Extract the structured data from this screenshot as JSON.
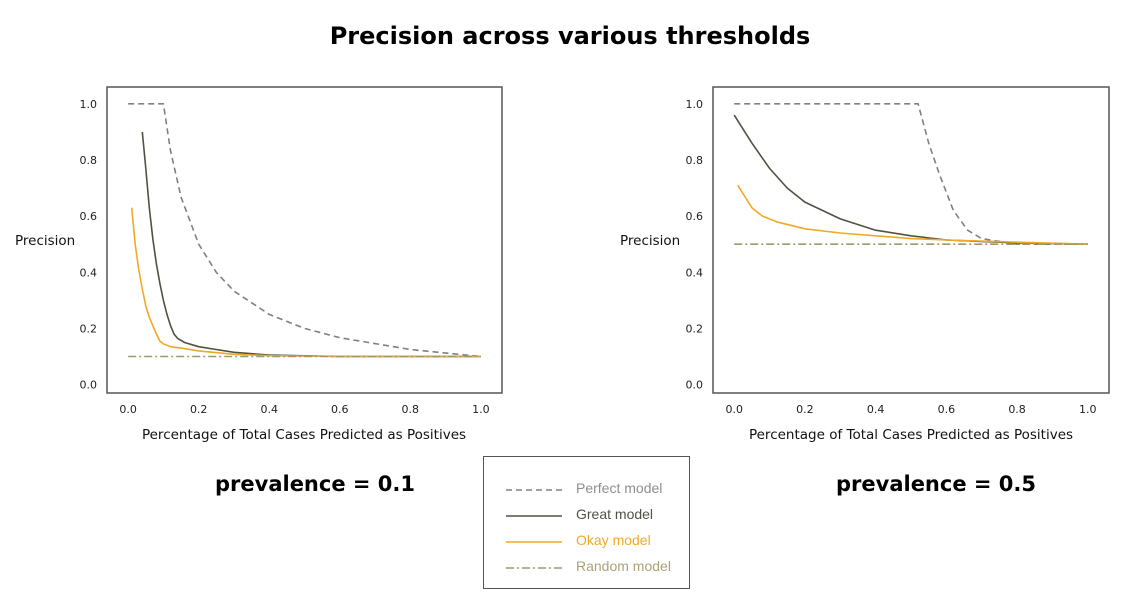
{
  "title": "Precision across various thresholds",
  "legend": {
    "items": [
      {
        "label": "Perfect model",
        "color": "#808080",
        "dash": "6,4"
      },
      {
        "label": "Great model",
        "color": "#4f5243",
        "dash": ""
      },
      {
        "label": "Okay model",
        "color": "#f0a926",
        "dash": ""
      },
      {
        "label": "Random model",
        "color": "#9b9a6e",
        "dash": "8,3,2,3"
      }
    ]
  },
  "chart_data": [
    {
      "type": "line",
      "caption": "prevalence = 0.1",
      "xlabel": "Percentage of Total Cases Predicted as Positives",
      "ylabel": "Precision",
      "xlim": [
        -0.06,
        1.06
      ],
      "ylim": [
        -0.03,
        1.06
      ],
      "xticks": [
        "0.0",
        "0.2",
        "0.4",
        "0.6",
        "0.8",
        "1.0"
      ],
      "yticks": [
        "0.0",
        "0.2",
        "0.4",
        "0.6",
        "0.8",
        "1.0"
      ],
      "grid": false,
      "series": [
        {
          "name": "Perfect model",
          "color": "#808080",
          "dash": "6,4",
          "x": [
            0.0,
            0.1,
            0.12,
            0.15,
            0.2,
            0.25,
            0.3,
            0.4,
            0.5,
            0.6,
            0.8,
            1.0
          ],
          "y": [
            1.0,
            1.0,
            0.833,
            0.667,
            0.5,
            0.4,
            0.333,
            0.25,
            0.2,
            0.167,
            0.125,
            0.1
          ]
        },
        {
          "name": "Great model",
          "color": "#4f5243",
          "dash": "",
          "x": [
            0.04,
            0.05,
            0.06,
            0.07,
            0.08,
            0.09,
            0.1,
            0.11,
            0.12,
            0.13,
            0.14,
            0.16,
            0.2,
            0.25,
            0.3,
            0.4,
            0.6,
            0.8,
            1.0
          ],
          "y": [
            0.9,
            0.77,
            0.63,
            0.52,
            0.43,
            0.36,
            0.3,
            0.25,
            0.21,
            0.18,
            0.165,
            0.15,
            0.135,
            0.125,
            0.115,
            0.105,
            0.1,
            0.1,
            0.1
          ]
        },
        {
          "name": "Okay model",
          "color": "#f0a926",
          "dash": "",
          "x": [
            0.01,
            0.02,
            0.03,
            0.04,
            0.05,
            0.06,
            0.07,
            0.08,
            0.09,
            0.1,
            0.12,
            0.15,
            0.2,
            0.3,
            0.4,
            0.6,
            0.8,
            1.0
          ],
          "y": [
            0.63,
            0.5,
            0.41,
            0.34,
            0.28,
            0.24,
            0.21,
            0.18,
            0.155,
            0.145,
            0.135,
            0.13,
            0.12,
            0.108,
            0.103,
            0.1,
            0.1,
            0.1
          ]
        },
        {
          "name": "Random model",
          "color": "#9b9a6e",
          "dash": "8,3,2,3",
          "x": [
            0.0,
            1.0
          ],
          "y": [
            0.1,
            0.1
          ]
        }
      ]
    },
    {
      "type": "line",
      "caption": "prevalence = 0.5",
      "xlabel": "Percentage of Total Cases Predicted as Positives",
      "ylabel": "Precision",
      "xlim": [
        -0.06,
        1.06
      ],
      "ylim": [
        -0.03,
        1.06
      ],
      "xticks": [
        "0.0",
        "0.2",
        "0.4",
        "0.6",
        "0.8",
        "1.0"
      ],
      "yticks": [
        "0.0",
        "0.2",
        "0.4",
        "0.6",
        "0.8",
        "1.0"
      ],
      "grid": false,
      "series": [
        {
          "name": "Perfect model",
          "color": "#808080",
          "dash": "6,4",
          "x": [
            0.0,
            0.52,
            0.55,
            0.58,
            0.62,
            0.66,
            0.7,
            0.8,
            0.9,
            1.0
          ],
          "y": [
            1.0,
            1.0,
            0.86,
            0.75,
            0.62,
            0.55,
            0.52,
            0.5,
            0.5,
            0.5
          ]
        },
        {
          "name": "Great model",
          "color": "#4f5243",
          "dash": "",
          "x": [
            0.0,
            0.05,
            0.1,
            0.15,
            0.2,
            0.3,
            0.4,
            0.5,
            0.6,
            0.7,
            0.8,
            1.0
          ],
          "y": [
            0.96,
            0.86,
            0.77,
            0.7,
            0.65,
            0.59,
            0.55,
            0.53,
            0.515,
            0.51,
            0.505,
            0.5
          ]
        },
        {
          "name": "Okay model",
          "color": "#f0a926",
          "dash": "",
          "x": [
            0.01,
            0.03,
            0.05,
            0.08,
            0.12,
            0.2,
            0.3,
            0.4,
            0.5,
            0.6,
            0.8,
            1.0
          ],
          "y": [
            0.71,
            0.67,
            0.63,
            0.6,
            0.58,
            0.555,
            0.54,
            0.53,
            0.52,
            0.515,
            0.507,
            0.5
          ]
        },
        {
          "name": "Random model",
          "color": "#9b9a6e",
          "dash": "8,3,2,3",
          "x": [
            0.0,
            1.0
          ],
          "y": [
            0.5,
            0.5
          ]
        }
      ]
    }
  ]
}
